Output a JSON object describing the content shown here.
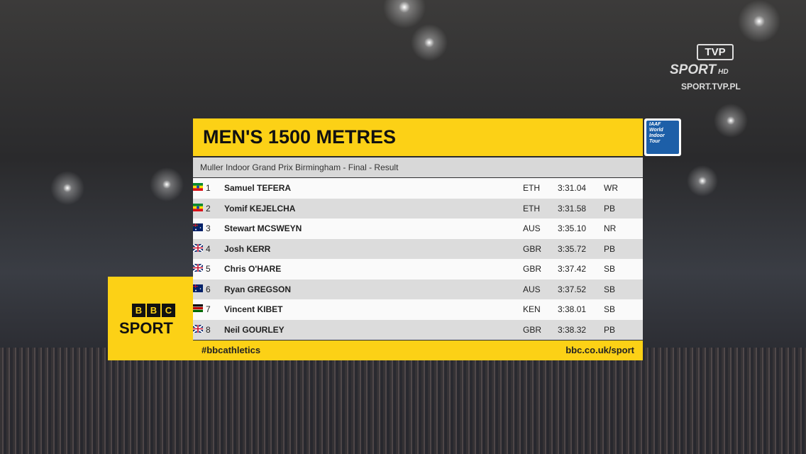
{
  "broadcaster": {
    "logo": "TVP",
    "channel": "SPORT",
    "quality": "HD",
    "website": "SPORT.TVP.PL"
  },
  "iaaf_logo": {
    "brand": "IAAF",
    "lines": [
      "World",
      "Indoor",
      "Tour"
    ]
  },
  "bbc_logo": {
    "letters": [
      "B",
      "B",
      "C"
    ],
    "sport": "SPORT"
  },
  "graphic": {
    "title": "MEN'S 1500 METRES",
    "subtitle": "Muller Indoor Grand Prix Birmingham - Final - Result",
    "rows": [
      {
        "rank": 1,
        "name": "Samuel TEFERA",
        "country": "ETH",
        "time": "3:31.04",
        "note": "WR"
      },
      {
        "rank": 2,
        "name": "Yomif KEJELCHA",
        "country": "ETH",
        "time": "3:31.58",
        "note": "PB"
      },
      {
        "rank": 3,
        "name": "Stewart MCSWEYN",
        "country": "AUS",
        "time": "3:35.10",
        "note": "NR"
      },
      {
        "rank": 4,
        "name": "Josh KERR",
        "country": "GBR",
        "time": "3:35.72",
        "note": "PB"
      },
      {
        "rank": 5,
        "name": "Chris O'HARE",
        "country": "GBR",
        "time": "3:37.42",
        "note": "SB"
      },
      {
        "rank": 6,
        "name": "Ryan GREGSON",
        "country": "AUS",
        "time": "3:37.52",
        "note": "SB"
      },
      {
        "rank": 7,
        "name": "Vincent KIBET",
        "country": "KEN",
        "time": "3:38.01",
        "note": "SB"
      },
      {
        "rank": 8,
        "name": "Neil GOURLEY",
        "country": "GBR",
        "time": "3:38.32",
        "note": "PB"
      }
    ],
    "hashtag": "#bbcathletics",
    "url": "bbc.co.uk/sport"
  }
}
